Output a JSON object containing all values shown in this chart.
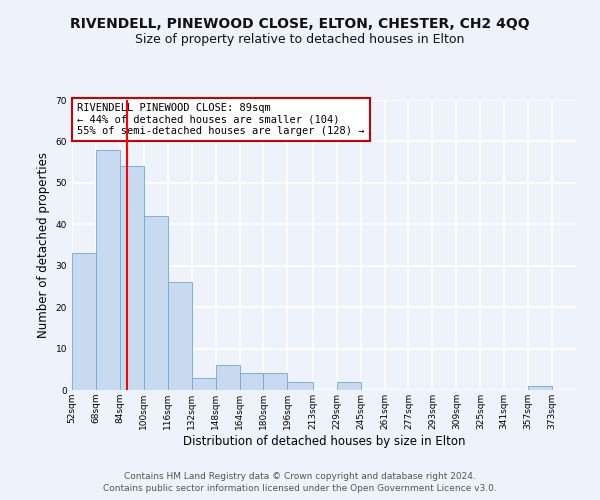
{
  "title": "RIVENDELL, PINEWOOD CLOSE, ELTON, CHESTER, CH2 4QQ",
  "subtitle": "Size of property relative to detached houses in Elton",
  "xlabel": "Distribution of detached houses by size in Elton",
  "ylabel": "Number of detached properties",
  "bar_color": "#c8daf0",
  "bar_edge_color": "#6aaad4",
  "bin_labels": [
    "52sqm",
    "68sqm",
    "84sqm",
    "100sqm",
    "116sqm",
    "132sqm",
    "148sqm",
    "164sqm",
    "180sqm",
    "196sqm",
    "213sqm",
    "229sqm",
    "245sqm",
    "261sqm",
    "277sqm",
    "293sqm",
    "309sqm",
    "325sqm",
    "341sqm",
    "357sqm",
    "373sqm"
  ],
  "bar_heights": [
    33,
    58,
    54,
    42,
    26,
    3,
    6,
    4,
    4,
    2,
    0,
    2,
    0,
    0,
    0,
    0,
    0,
    0,
    0,
    1,
    0
  ],
  "bin_edges": [
    52,
    68,
    84,
    100,
    116,
    132,
    148,
    164,
    180,
    196,
    213,
    229,
    245,
    261,
    277,
    293,
    309,
    325,
    341,
    357,
    373,
    389
  ],
  "ylim": [
    0,
    70
  ],
  "yticks": [
    0,
    10,
    20,
    30,
    40,
    50,
    60,
    70
  ],
  "red_line_x": 89,
  "annotation_text": "RIVENDELL PINEWOOD CLOSE: 89sqm\n← 44% of detached houses are smaller (104)\n55% of semi-detached houses are larger (128) →",
  "annotation_box_color": "#ffffff",
  "annotation_box_edge_color": "#cc0000",
  "footer1": "Contains HM Land Registry data © Crown copyright and database right 2024.",
  "footer2": "Contains public sector information licensed under the Open Government Licence v3.0.",
  "background_color": "#eef2fa",
  "plot_bg_color": "#eef2fa",
  "grid_color": "#ffffff",
  "title_fontsize": 10,
  "subtitle_fontsize": 9,
  "axis_label_fontsize": 8.5,
  "tick_fontsize": 6.5,
  "annotation_fontsize": 7.5,
  "footer_fontsize": 6.5
}
